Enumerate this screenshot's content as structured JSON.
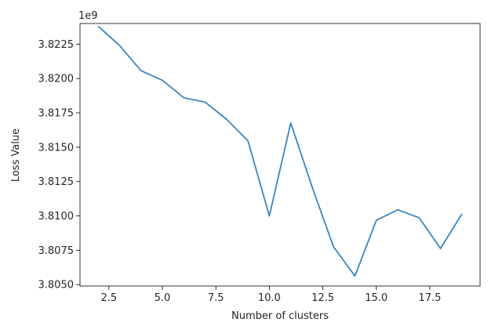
{
  "chart_data": {
    "type": "line",
    "xlabel": "Number of clusters",
    "ylabel": "Loss Value",
    "y_offset_label": "1e9",
    "xlim": [
      1.15,
      19.85
    ],
    "ylim": [
      3.8049,
      3.824
    ],
    "x_ticks": [
      2.5,
      5.0,
      7.5,
      10.0,
      12.5,
      15.0,
      17.5
    ],
    "x_tick_labels": [
      "2.5",
      "5.0",
      "7.5",
      "10.0",
      "12.5",
      "15.0",
      "17.5"
    ],
    "y_ticks": [
      3.805,
      3.8075,
      3.81,
      3.8125,
      3.815,
      3.8175,
      3.82,
      3.8225
    ],
    "y_tick_labels": [
      "3.8050",
      "3.8075",
      "3.8100",
      "3.8125",
      "3.8150",
      "3.8175",
      "3.8200",
      "3.8225"
    ],
    "grid": false,
    "line_color": "#3a85c0",
    "series": [
      {
        "x": [
          2,
          3,
          4,
          5,
          6,
          7,
          8,
          9,
          10,
          11,
          12,
          13,
          14,
          15,
          16,
          17,
          18,
          19
        ],
        "values": [
          3.8238,
          3.8224,
          3.82057,
          3.81987,
          3.8186,
          3.81828,
          3.81703,
          3.81547,
          3.81,
          3.81676,
          3.8121,
          3.80775,
          3.80563,
          3.80968,
          3.81045,
          3.80987,
          3.80763,
          3.81015
        ]
      }
    ]
  }
}
